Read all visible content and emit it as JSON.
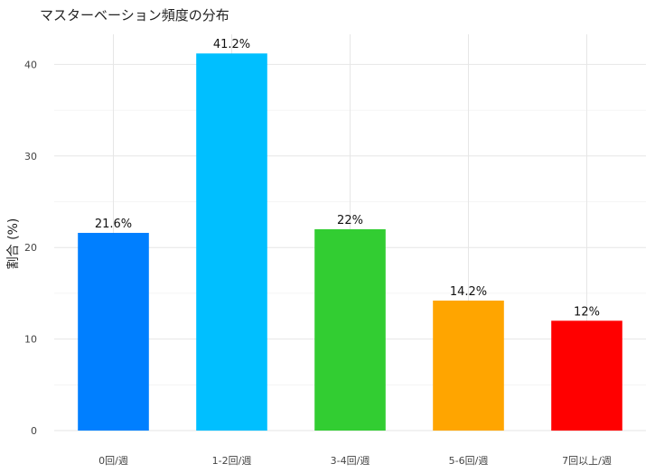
{
  "chart_data": {
    "type": "bar",
    "title": "マスターベーション頻度の分布",
    "xlabel": "",
    "ylabel": "割合 (%)",
    "categories": [
      "0回/週",
      "1-2回/週",
      "3-4回/週",
      "5-6回/週",
      "7回以上/週"
    ],
    "values": [
      21.6,
      41.2,
      22,
      14.2,
      12
    ],
    "value_labels": [
      "21.6%",
      "41.2%",
      "22%",
      "14.2%",
      "12%"
    ],
    "colors": [
      "#007FFF",
      "#00BFFF",
      "#32CD32",
      "#FFA500",
      "#FF0000"
    ],
    "yticks": [
      0,
      10,
      20,
      30,
      40
    ],
    "ylim": [
      0,
      43.3
    ],
    "grid": true,
    "legend": "none"
  }
}
